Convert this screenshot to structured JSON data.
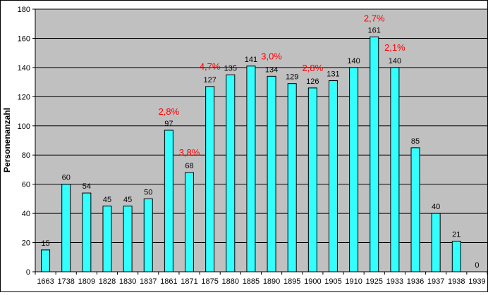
{
  "chart_data": {
    "type": "bar",
    "categories": [
      "1663",
      "1738",
      "1809",
      "1828",
      "1830",
      "1837",
      "1861",
      "1871",
      "1875",
      "1880",
      "1885",
      "1890",
      "1895",
      "1900",
      "1905",
      "1910",
      "1925",
      "1933",
      "1936",
      "1937",
      "1938",
      "1939"
    ],
    "values": [
      15,
      60,
      54,
      45,
      45,
      50,
      97,
      68,
      127,
      135,
      141,
      134,
      129,
      126,
      131,
      140,
      161,
      140,
      85,
      40,
      21,
      0
    ],
    "value_labels": [
      "15",
      "60",
      "54",
      "45",
      "45",
      "50",
      "97",
      "68",
      "127",
      "135",
      "141",
      "134",
      "129",
      "126",
      "131",
      "140",
      "161",
      "140",
      "85",
      "40",
      "21",
      "0"
    ],
    "ylabel": "Personenanzahl",
    "xlabel": "",
    "title": "",
    "ylim": [
      0,
      180
    ],
    "y_ticks": [
      "0",
      "20",
      "40",
      "60",
      "80",
      "100",
      "120",
      "140",
      "160",
      "180"
    ],
    "grid": true,
    "legend": "none",
    "annotations": [
      {
        "category": "1861",
        "text": "2,8%"
      },
      {
        "category": "1871",
        "text": "3,8%"
      },
      {
        "category": "1875",
        "text": "4,7%"
      },
      {
        "category": "1890",
        "text": "3,0%"
      },
      {
        "category": "1900",
        "text": "2,8%"
      },
      {
        "category": "1925",
        "text": "2,7%"
      },
      {
        "category": "1933",
        "text": "2,1%"
      }
    ],
    "colors": {
      "bar_fill": "#33ffff",
      "bar_stroke": "#000000",
      "plot_background": "#c0c0c0",
      "gridline": "#000000",
      "annotation": "#ff0000"
    }
  }
}
